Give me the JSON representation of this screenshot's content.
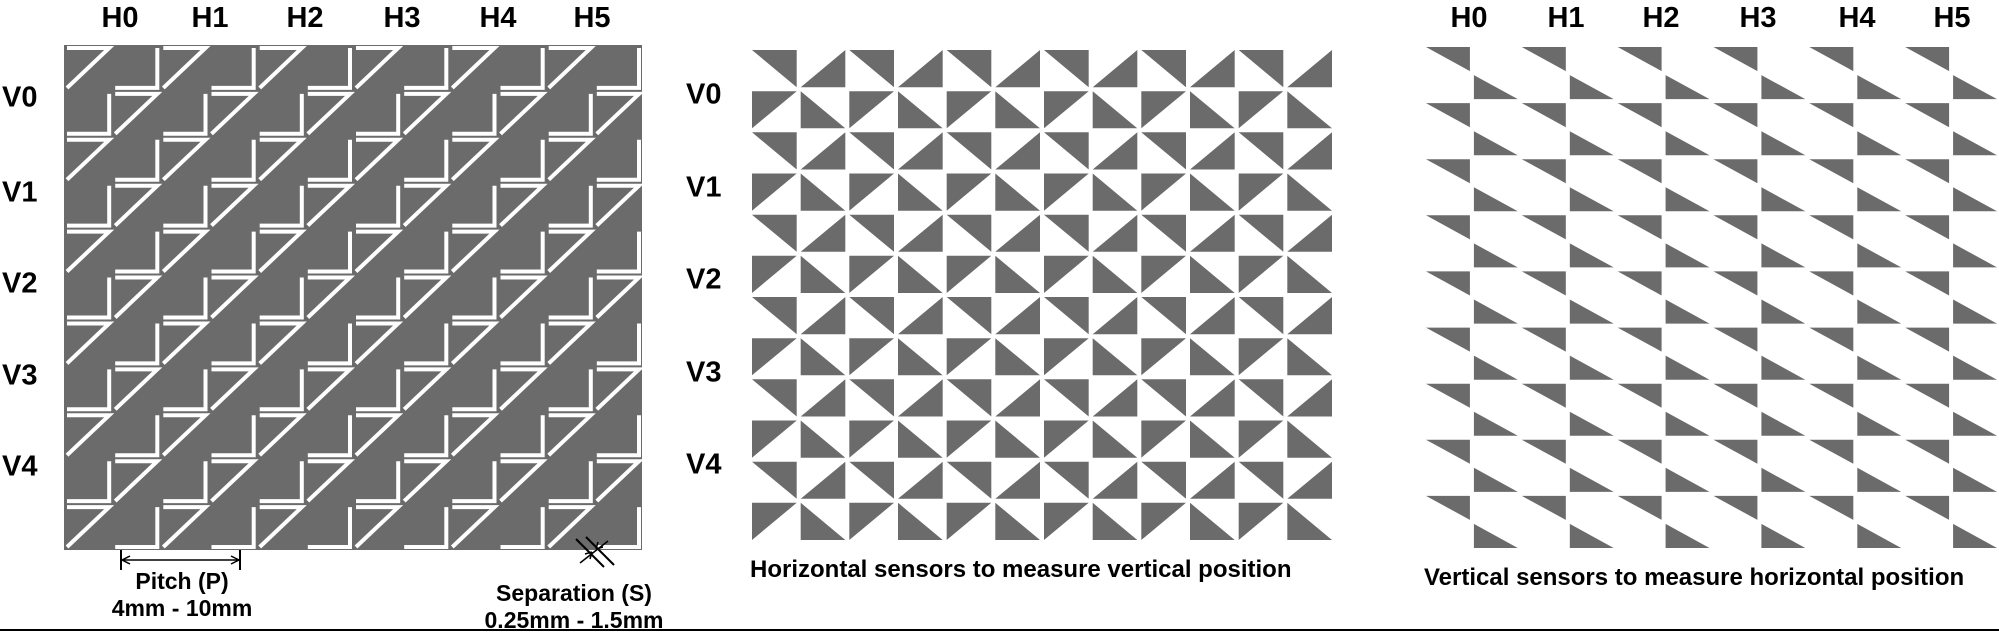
{
  "panels": {
    "combined": {
      "column_labels": [
        "H0",
        "H1",
        "H2",
        "H3",
        "H4",
        "H5"
      ],
      "row_labels": [
        "V0",
        "V1",
        "V2",
        "V3",
        "V4"
      ],
      "pitch": {
        "title": "Pitch (P)",
        "range": "4mm - 10mm"
      },
      "separation": {
        "title": "Separation (S)",
        "range": "0.25mm - 1.5mm"
      }
    },
    "horizontal": {
      "row_labels": [
        "V0",
        "V1",
        "V2",
        "V3",
        "V4"
      ],
      "caption": "Horizontal sensors to measure vertical position"
    },
    "vertical": {
      "column_labels": [
        "H0",
        "H1",
        "H2",
        "H3",
        "H4",
        "H5"
      ],
      "caption": "Vertical sensors to measure horizontal position"
    }
  },
  "colors": {
    "electrode": "#6b6b6b",
    "background": "#ffffff",
    "text": "#000000"
  }
}
